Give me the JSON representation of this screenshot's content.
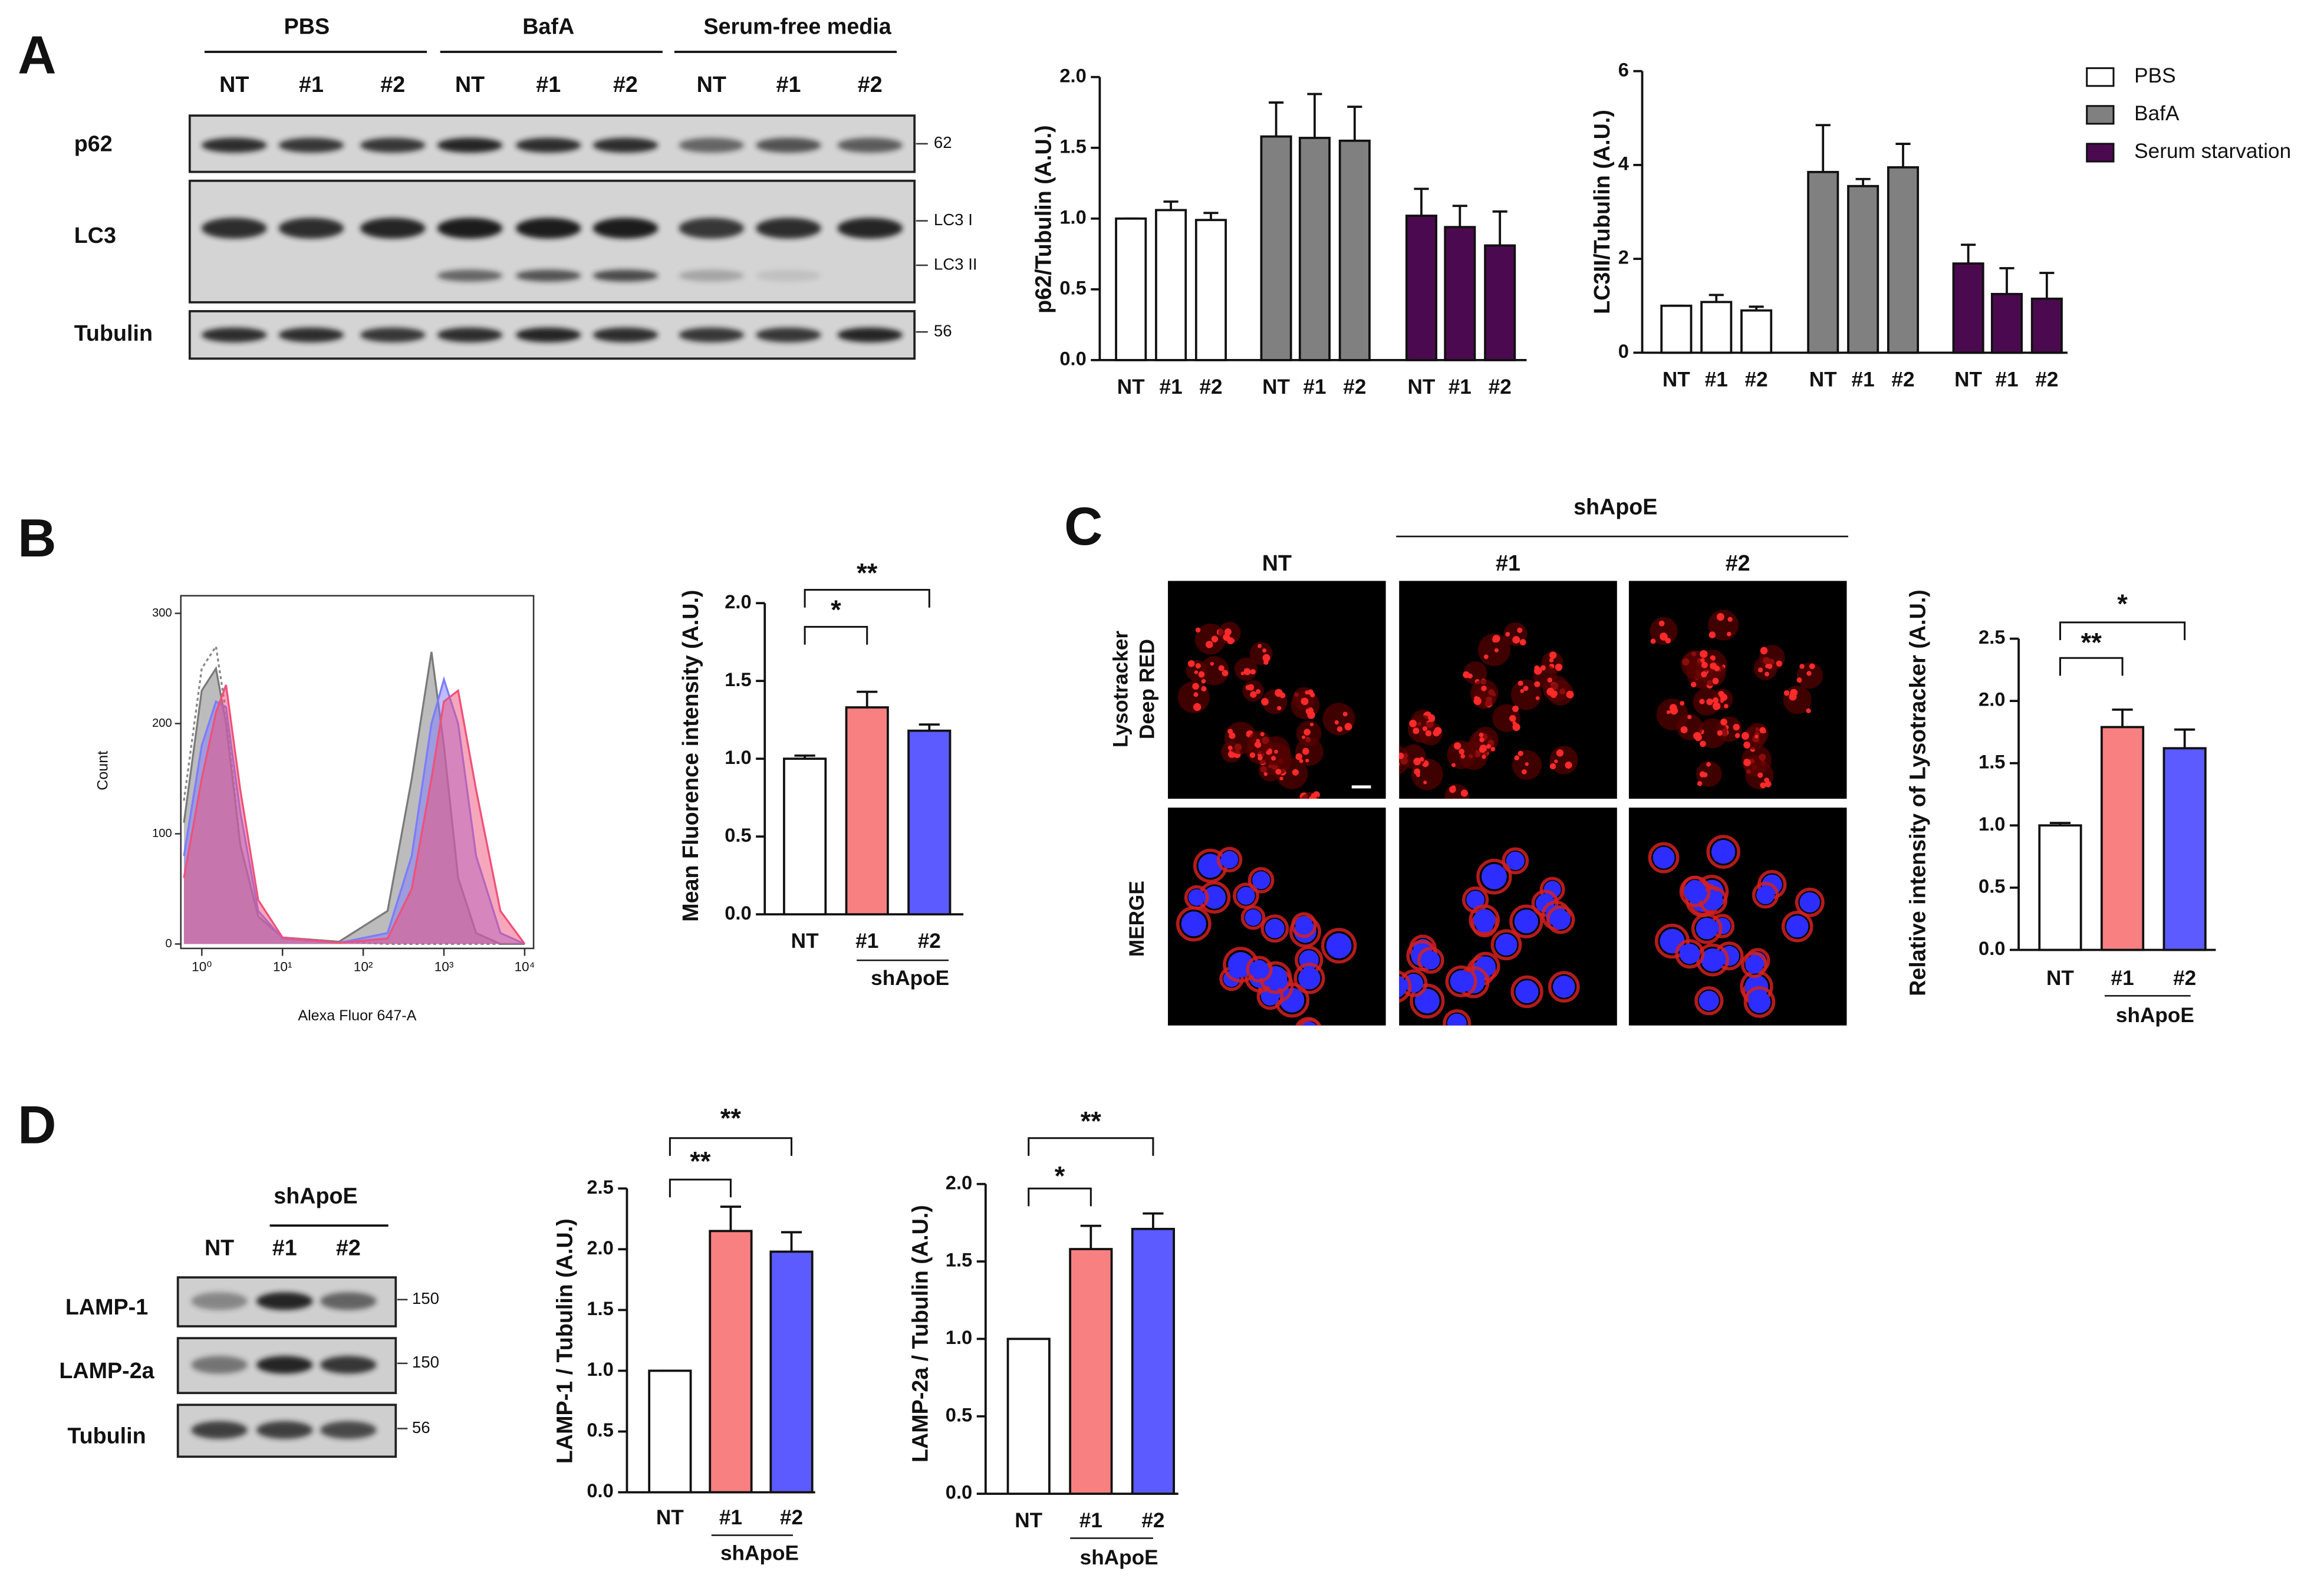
{
  "panels": [
    "A",
    "B",
    "C",
    "D"
  ],
  "blot_a": {
    "groups": [
      "PBS",
      "BafA",
      "Serum-free media"
    ],
    "lanes": [
      "NT",
      "#1",
      "#2"
    ],
    "rows": [
      "p62",
      "LC3",
      "Tubulin"
    ],
    "markers": [
      "62",
      "LC3 I",
      "LC3 II",
      "56"
    ]
  },
  "imaging_c": {
    "group": "shApoE",
    "columns": [
      "NT",
      "#1",
      "#2"
    ],
    "rows": [
      [
        "Lysotracker",
        "Deep RED"
      ],
      [
        "MERGE"
      ]
    ]
  },
  "blot_d": {
    "group": "shApoE",
    "lanes": [
      "NT",
      "#1",
      "#2"
    ],
    "rows": [
      "LAMP-1",
      "LAMP-2a",
      "Tubulin"
    ],
    "markers": [
      "150",
      "150",
      "56"
    ]
  },
  "chart_data": [
    {
      "type": "bar",
      "y_label": "p62/Tubulin (A.U.)",
      "categories": [
        "NT",
        "#1",
        "#2"
      ],
      "series": [
        {
          "color": "#ffffff",
          "values": [
            1.0,
            1.06,
            0.99
          ],
          "errors": [
            0,
            0.06,
            0.05
          ]
        },
        {
          "color": "#808080",
          "values": [
            1.58,
            1.57,
            1.55
          ],
          "errors": [
            0.24,
            0.31,
            0.24
          ]
        },
        {
          "color": "#4b0a4f",
          "values": [
            1.02,
            0.94,
            0.81
          ],
          "errors": [
            0.19,
            0.15,
            0.24
          ]
        }
      ],
      "ylim": [
        0,
        2
      ],
      "yticks": [
        {
          "value": 0,
          "label": "0.0"
        },
        {
          "value": 0.5,
          "label": "0.5"
        },
        {
          "value": 1,
          "label": "1.0"
        },
        {
          "value": 1.5,
          "label": "1.5"
        },
        {
          "value": 2,
          "label": "2.0"
        }
      ]
    },
    {
      "type": "bar",
      "y_label": "LC3II/Tubulin (A.U.)",
      "categories": [
        "NT",
        "#1",
        "#2"
      ],
      "series": [
        {
          "name": "PBS",
          "color": "#ffffff",
          "values": [
            1.0,
            1.08,
            0.9
          ],
          "errors": [
            0,
            0.15,
            0.08
          ]
        },
        {
          "name": "BafA",
          "color": "#808080",
          "values": [
            3.85,
            3.55,
            3.95
          ],
          "errors": [
            1.0,
            0.15,
            0.5
          ]
        },
        {
          "name": "Serum starvation",
          "color": "#4b0a4f",
          "values": [
            1.9,
            1.25,
            1.15
          ],
          "errors": [
            0.4,
            0.55,
            0.55
          ]
        }
      ],
      "ylim": [
        0,
        6
      ],
      "yticks": [
        0,
        2,
        4,
        6
      ],
      "legend": "right"
    },
    {
      "type": "area",
      "x_label": "Alexa Fluor 647-A",
      "y_label": "Count",
      "log_x": true,
      "x": [
        0.6,
        1,
        1.5,
        2,
        3,
        5,
        10,
        50,
        200,
        400,
        700,
        1000,
        1500,
        2500,
        5000,
        10000
      ],
      "series": [
        {
          "color": "#888888",
          "filled": false,
          "dotted": true,
          "values": [
            130,
            250,
            270,
            210,
            90,
            25,
            6,
            2,
            0,
            0,
            0,
            0,
            0,
            0,
            0,
            0
          ]
        },
        {
          "color": "#7a7a7a",
          "filled": true,
          "dotted": false,
          "values": [
            110,
            230,
            250,
            200,
            90,
            25,
            6,
            2,
            30,
            150,
            265,
            180,
            60,
            10,
            0,
            0
          ]
        },
        {
          "color": "#7b7bff",
          "filled": true,
          "dotted": false,
          "values": [
            80,
            180,
            220,
            215,
            120,
            30,
            5,
            1,
            10,
            80,
            200,
            240,
            200,
            80,
            10,
            0
          ]
        },
        {
          "color": "#f0507a",
          "filled": true,
          "dotted": false,
          "values": [
            60,
            150,
            210,
            235,
            140,
            40,
            6,
            1,
            5,
            50,
            150,
            220,
            230,
            140,
            30,
            0
          ]
        }
      ],
      "xlim": [
        0.55,
        12900
      ],
      "ylim": [
        -4,
        316
      ],
      "xticks": [
        {
          "value": 1,
          "label": "10⁰"
        },
        {
          "value": 10,
          "label": "10¹"
        },
        {
          "value": 100,
          "label": "10²"
        },
        {
          "value": 1000,
          "label": "10³"
        },
        {
          "value": 10000,
          "label": "10⁴"
        }
      ],
      "yticks": [
        0,
        100,
        200,
        300
      ]
    },
    {
      "type": "bar",
      "y_label": "Mean Fluorence intensity (A.U.)",
      "categories": [
        "NT",
        "#1",
        "#2"
      ],
      "values": [
        1.0,
        1.33,
        1.18
      ],
      "errors": [
        0.02,
        0.1,
        0.04
      ],
      "colors": [
        "#ffffff",
        "#f88080",
        "#5b5bff"
      ],
      "group_label": "shApoE",
      "significance": [
        {
          "from": 0,
          "to": 1,
          "label": "*"
        },
        {
          "from": 0,
          "to": 2,
          "label": "**"
        }
      ],
      "ylim": [
        0,
        2
      ],
      "yticks": [
        {
          "value": 0,
          "label": "0.0"
        },
        {
          "value": 0.5,
          "label": "0.5"
        },
        {
          "value": 1,
          "label": "1.0"
        },
        {
          "value": 1.5,
          "label": "1.5"
        },
        {
          "value": 2,
          "label": "2.0"
        }
      ]
    },
    {
      "type": "bar",
      "y_label": "Relative intensity of Lysotracker (A.U.)",
      "categories": [
        "NT",
        "#1",
        "#2"
      ],
      "values": [
        1.0,
        1.79,
        1.62
      ],
      "errors": [
        0.02,
        0.14,
        0.15
      ],
      "colors": [
        "#ffffff",
        "#f88080",
        "#5b5bff"
      ],
      "group_label": "shApoE",
      "significance": [
        {
          "from": 0,
          "to": 1,
          "label": "**"
        },
        {
          "from": 0,
          "to": 2,
          "label": "*"
        }
      ],
      "ylim": [
        0,
        2.5
      ],
      "yticks": [
        {
          "value": 0,
          "label": "0.0"
        },
        {
          "value": 0.5,
          "label": "0.5"
        },
        {
          "value": 1,
          "label": "1.0"
        },
        {
          "value": 1.5,
          "label": "1.5"
        },
        {
          "value": 2,
          "label": "2.0"
        },
        {
          "value": 2.5,
          "label": "2.5"
        }
      ]
    },
    {
      "type": "bar",
      "y_label": "LAMP-1 / Tubulin (A.U.)",
      "categories": [
        "NT",
        "#1",
        "#2"
      ],
      "values": [
        1.0,
        2.15,
        1.98
      ],
      "errors": [
        0,
        0.2,
        0.16
      ],
      "colors": [
        "#ffffff",
        "#f88080",
        "#5b5bff"
      ],
      "group_label": "shApoE",
      "significance": [
        {
          "from": 0,
          "to": 1,
          "label": "**"
        },
        {
          "from": 0,
          "to": 2,
          "label": "**"
        }
      ],
      "ylim": [
        0,
        2.5
      ],
      "yticks": [
        {
          "value": 0,
          "label": "0.0"
        },
        {
          "value": 0.5,
          "label": "0.5"
        },
        {
          "value": 1,
          "label": "1.0"
        },
        {
          "value": 1.5,
          "label": "1.5"
        },
        {
          "value": 2,
          "label": "2.0"
        },
        {
          "value": 2.5,
          "label": "2.5"
        }
      ]
    },
    {
      "type": "bar",
      "y_label": "LAMP-2a / Tubulin (A.U.)",
      "categories": [
        "NT",
        "#1",
        "#2"
      ],
      "values": [
        1.0,
        1.58,
        1.71
      ],
      "errors": [
        0,
        0.15,
        0.1
      ],
      "colors": [
        "#ffffff",
        "#f88080",
        "#5b5bff"
      ],
      "group_label": "shApoE",
      "significance": [
        {
          "from": 0,
          "to": 1,
          "label": "*"
        },
        {
          "from": 0,
          "to": 2,
          "label": "**"
        }
      ],
      "ylim": [
        0,
        2
      ],
      "yticks": [
        {
          "value": 0,
          "label": "0.0"
        },
        {
          "value": 0.5,
          "label": "0.5"
        },
        {
          "value": 1,
          "label": "1.0"
        },
        {
          "value": 1.5,
          "label": "1.5"
        },
        {
          "value": 2,
          "label": "2.0"
        }
      ]
    }
  ]
}
